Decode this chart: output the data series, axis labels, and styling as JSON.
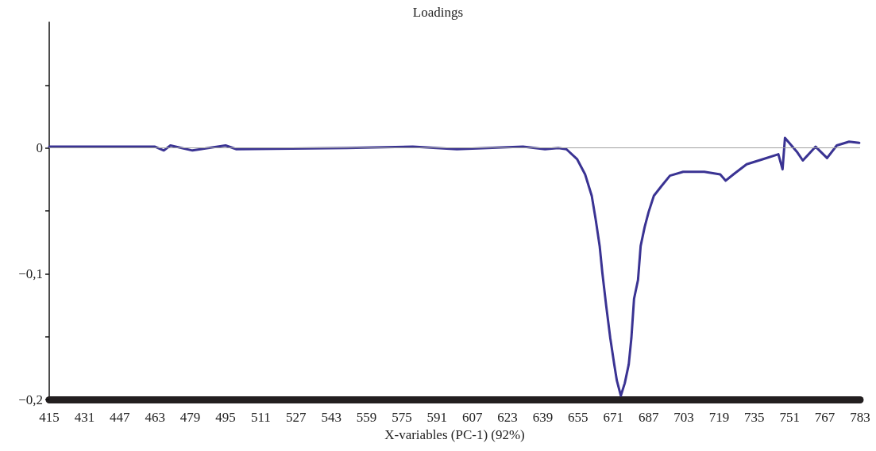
{
  "chart_data": {
    "type": "line",
    "title": "Loadings",
    "xlabel": "X-variables (PC-1) (92%)",
    "xlim": [
      415,
      783
    ],
    "xticks": [
      415,
      431,
      447,
      463,
      479,
      495,
      511,
      527,
      543,
      559,
      575,
      591,
      607,
      623,
      639,
      655,
      671,
      687,
      703,
      719,
      735,
      751,
      767,
      783
    ],
    "ylim": [
      -0.2,
      0.1
    ],
    "yticks": [
      {
        "value": -0.2,
        "label": "−0,2"
      },
      {
        "value": -0.15,
        "label": null
      },
      {
        "value": -0.1,
        "label": "−0,1"
      },
      {
        "value": -0.05,
        "label": null
      },
      0,
      {
        "value": 0.05,
        "label": null
      }
    ],
    "grid": false,
    "marker": "none",
    "line_style": "solid",
    "ref_lines": [
      {
        "axis": "y",
        "value": 0,
        "color": "#a0a0a0"
      }
    ],
    "series": [
      {
        "color": "#3a3393",
        "x": [
          415,
          463,
          467,
          470,
          480,
          495,
          500,
          550,
          580,
          600,
          630,
          640,
          646,
          649.7,
          654.6,
          658.2,
          661.2,
          663,
          664.8,
          666,
          667.8,
          669.6,
          671.4,
          672.6,
          674.4,
          676.2,
          678,
          679.2,
          680.4,
          682.2,
          683.4,
          685.2,
          687,
          689.4,
          693,
          696.7,
          702.7,
          712.3,
          719.5,
          722,
          725.5,
          731.5,
          738.7,
          745.9,
          747.8,
          748.9,
          754.3,
          757,
          762.8,
          768,
          772.4,
          778,
          782.6
        ],
        "values": [
          0.001,
          0.001,
          -0.002,
          0.002,
          -0.002,
          0.002,
          -0.001,
          0,
          0.001,
          -0.001,
          0.001,
          -0.001,
          0,
          -0.001,
          -0.009,
          -0.021,
          -0.038,
          -0.057,
          -0.078,
          -0.099,
          -0.126,
          -0.151,
          -0.172,
          -0.185,
          -0.197,
          -0.187,
          -0.172,
          -0.151,
          -0.12,
          -0.105,
          -0.078,
          -0.063,
          -0.051,
          -0.038,
          -0.03,
          -0.022,
          -0.019,
          -0.019,
          -0.021,
          -0.026,
          -0.021,
          -0.013,
          -0.009,
          -0.005,
          -0.017,
          0.008,
          -0.003,
          -0.01,
          0.001,
          -0.008,
          0.002,
          0.005,
          0.004
        ]
      }
    ]
  }
}
